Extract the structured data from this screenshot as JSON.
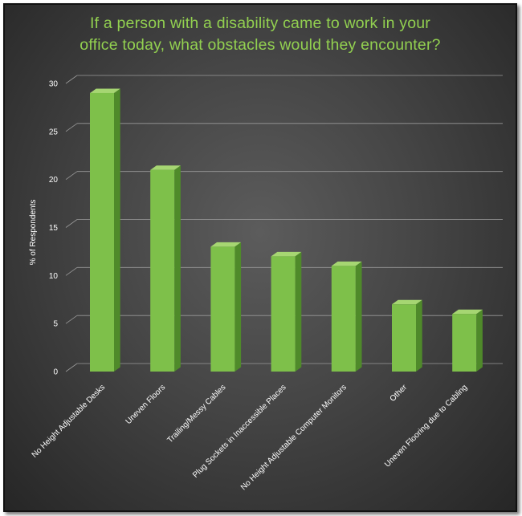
{
  "chart_data": {
    "type": "bar",
    "title_lines": [
      "If a person with a disability  came to work in your",
      "office today, what obstacles would they encounter?"
    ],
    "xlabel": "",
    "ylabel": "% of Respondents",
    "categories": [
      "No Height Adjustable  Desks",
      "Uneven Floors",
      "Trailing/Messy Cables",
      "Plug Sockets in Inaccessible  Places",
      "No Height Adjustable  Computer Monitors",
      "Other",
      "Uneven Flooring due to Cabling"
    ],
    "values": [
      29,
      21,
      13,
      12,
      11,
      7,
      6
    ],
    "ylim": [
      0,
      30
    ],
    "yticks": [
      0,
      5,
      10,
      15,
      20,
      25,
      30
    ],
    "grid": true,
    "style": "3d-column",
    "colors": {
      "bar_front": "#7ec04a",
      "bar_side": "#4f8a2a",
      "bar_top": "#a6d672",
      "title": "#92d050",
      "grid": "#9a9a9a",
      "text": "#ffffff"
    }
  }
}
